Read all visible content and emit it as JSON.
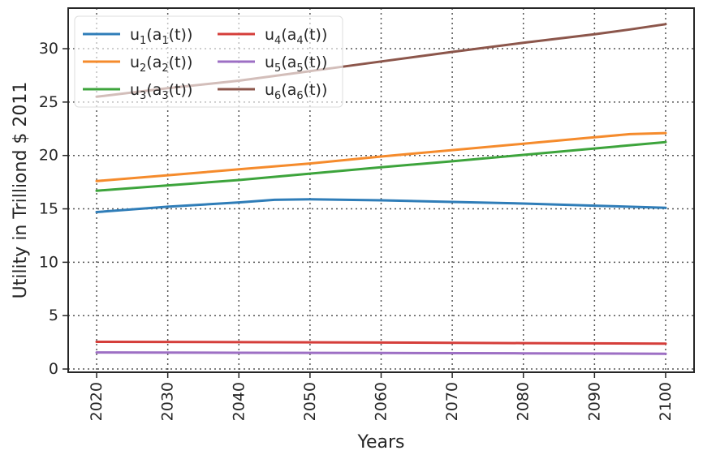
{
  "chart_data": {
    "type": "line",
    "title": "",
    "xlabel": "Years",
    "ylabel": "Utility in Trilliond $ 2011",
    "xlim": [
      2016,
      2104
    ],
    "ylim": [
      -0.3,
      33.8
    ],
    "xticks": [
      2020,
      2030,
      2040,
      2050,
      2060,
      2070,
      2080,
      2090,
      2100
    ],
    "yticks": [
      0,
      5,
      10,
      15,
      20,
      25,
      30
    ],
    "grid": true,
    "legend_position": "top-left",
    "legend_columns": 2,
    "series": [
      {
        "name": "u_1(a_1(t))",
        "label": {
          "base": "u",
          "sub": "1",
          "open": "(a",
          "sub2": "1",
          "close": "(t))"
        },
        "color": "#2f7db8",
        "x": [
          2020,
          2030,
          2040,
          2045,
          2050,
          2060,
          2070,
          2080,
          2090,
          2100
        ],
        "y": [
          14.7,
          15.2,
          15.6,
          15.85,
          15.9,
          15.8,
          15.65,
          15.5,
          15.3,
          15.1
        ]
      },
      {
        "name": "u_2(a_2(t))",
        "label": {
          "base": "u",
          "sub": "2",
          "open": "(a",
          "sub2": "2",
          "close": "(t))"
        },
        "color": "#f58b2c",
        "x": [
          2020,
          2030,
          2040,
          2050,
          2060,
          2070,
          2080,
          2090,
          2095,
          2100
        ],
        "y": [
          17.6,
          18.15,
          18.7,
          19.25,
          19.9,
          20.5,
          21.1,
          21.7,
          22.0,
          22.1
        ]
      },
      {
        "name": "u_3(a_3(t))",
        "label": {
          "base": "u",
          "sub": "3",
          "open": "(a",
          "sub2": "3",
          "close": "(t))"
        },
        "color": "#3da43c",
        "x": [
          2020,
          2030,
          2040,
          2050,
          2060,
          2070,
          2080,
          2090,
          2100
        ],
        "y": [
          16.7,
          17.2,
          17.7,
          18.3,
          18.9,
          19.45,
          20.05,
          20.65,
          21.25
        ]
      },
      {
        "name": "u_4(a_4(t))",
        "label": {
          "base": "u",
          "sub": "4",
          "open": "(a",
          "sub2": "4",
          "close": "(t))"
        },
        "color": "#d53e3a",
        "x": [
          2020,
          2040,
          2060,
          2080,
          2100
        ],
        "y": [
          2.55,
          2.52,
          2.48,
          2.43,
          2.38
        ]
      },
      {
        "name": "u_5(a_5(t))",
        "label": {
          "base": "u",
          "sub": "5",
          "open": "(a",
          "sub2": "5",
          "close": "(t))"
        },
        "color": "#9d6fc4",
        "x": [
          2020,
          2040,
          2060,
          2080,
          2100
        ],
        "y": [
          1.55,
          1.52,
          1.5,
          1.47,
          1.43
        ]
      },
      {
        "name": "u_6(a_6(t))",
        "label": {
          "base": "u",
          "sub": "6",
          "open": "(a",
          "sub2": "6",
          "close": "(t))"
        },
        "color": "#8c564b",
        "x": [
          2020,
          2030,
          2040,
          2050,
          2060,
          2070,
          2080,
          2090,
          2095,
          2100
        ],
        "y": [
          25.5,
          26.3,
          27.0,
          27.9,
          28.8,
          29.7,
          30.55,
          31.35,
          31.8,
          32.3
        ]
      }
    ]
  }
}
